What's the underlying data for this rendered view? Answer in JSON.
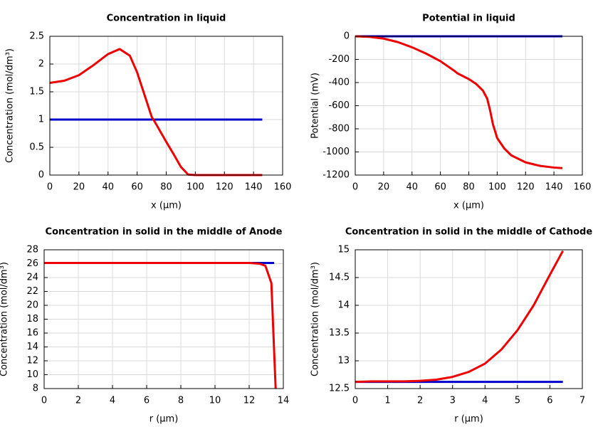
{
  "chart_data": [
    {
      "type": "line",
      "title": "Concentration in liquid",
      "xlabel": "x (µm)",
      "ylabel": "Concentration (mol/dm³)",
      "xlim": [
        0,
        160
      ],
      "ylim": [
        0,
        2.5
      ],
      "xticks": [
        0,
        20,
        40,
        60,
        80,
        100,
        120,
        140,
        160
      ],
      "yticks": [
        0,
        0.5,
        1,
        1.5,
        2,
        2.5
      ],
      "grid": true,
      "series": [
        {
          "color": "#0000cc",
          "x": [
            0,
            146
          ],
          "values": [
            1,
            1
          ]
        },
        {
          "color": "#ee0000",
          "x": [
            0,
            10,
            20,
            30,
            40,
            48,
            55,
            60,
            65,
            70,
            73,
            80,
            85,
            90,
            95,
            100,
            146
          ],
          "values": [
            1.66,
            1.7,
            1.8,
            1.98,
            2.18,
            2.27,
            2.15,
            1.85,
            1.45,
            1.05,
            0.92,
            0.6,
            0.38,
            0.15,
            0.01,
            0,
            0
          ]
        }
      ]
    },
    {
      "type": "line",
      "title": "Potential in liquid",
      "xlabel": "x (µm)",
      "ylabel": "Potential (mV)",
      "xlim": [
        0,
        160
      ],
      "ylim": [
        -1200,
        0
      ],
      "xticks": [
        0,
        20,
        40,
        60,
        80,
        100,
        120,
        140,
        160
      ],
      "yticks": [
        -1200,
        -1000,
        -800,
        -600,
        -400,
        -200,
        0
      ],
      "grid": true,
      "series": [
        {
          "color": "#0000cc",
          "x": [
            0,
            146
          ],
          "values": [
            0,
            0
          ]
        },
        {
          "color": "#ee0000",
          "x": [
            0,
            10,
            20,
            30,
            40,
            50,
            60,
            70,
            72,
            80,
            85,
            90,
            93,
            95,
            97,
            100,
            105,
            110,
            120,
            130,
            140,
            146
          ],
          "values": [
            0,
            -5,
            -20,
            -50,
            -95,
            -150,
            -215,
            -300,
            -320,
            -370,
            -410,
            -470,
            -540,
            -640,
            -760,
            -880,
            -970,
            -1030,
            -1090,
            -1120,
            -1135,
            -1140
          ]
        }
      ]
    },
    {
      "type": "line",
      "title": "Concentration in solid in the middle of Anode",
      "xlabel": "r (µm)",
      "ylabel": "Concentration (mol/dm³)",
      "xlim": [
        0,
        14
      ],
      "ylim": [
        8,
        28
      ],
      "xticks": [
        0,
        2,
        4,
        6,
        8,
        10,
        12,
        14
      ],
      "yticks": [
        8,
        10,
        12,
        14,
        16,
        18,
        20,
        22,
        24,
        26,
        28
      ],
      "grid": true,
      "series": [
        {
          "color": "#0000cc",
          "x": [
            0,
            13.46
          ],
          "values": [
            26.1,
            26.1
          ]
        },
        {
          "color": "#ee0000",
          "x": [
            0,
            12,
            12.6,
            12.95,
            13.3,
            13.55
          ],
          "values": [
            26.1,
            26.1,
            26.0,
            25.7,
            23.2,
            8
          ]
        }
      ]
    },
    {
      "type": "line",
      "title": "Concentration in solid in the middle of Cathode",
      "xlabel": "r (µm)",
      "ylabel": "Concentration (mol/dm³)",
      "xlim": [
        0,
        7
      ],
      "ylim": [
        12.5,
        15
      ],
      "xticks": [
        0,
        1,
        2,
        3,
        4,
        5,
        6,
        7
      ],
      "yticks": [
        12.5,
        13,
        13.5,
        14,
        14.5,
        15
      ],
      "grid": true,
      "series": [
        {
          "color": "#0000cc",
          "x": [
            0,
            6.4
          ],
          "values": [
            12.62,
            12.62
          ]
        },
        {
          "color": "#ee0000",
          "x": [
            0,
            0.5,
            1,
            1.5,
            2,
            2.5,
            3,
            3.5,
            4,
            4.5,
            5,
            5.5,
            6,
            6.4
          ],
          "values": [
            12.62,
            12.63,
            12.63,
            12.63,
            12.64,
            12.66,
            12.71,
            12.8,
            12.95,
            13.2,
            13.55,
            14.0,
            14.55,
            14.98
          ]
        }
      ]
    }
  ]
}
